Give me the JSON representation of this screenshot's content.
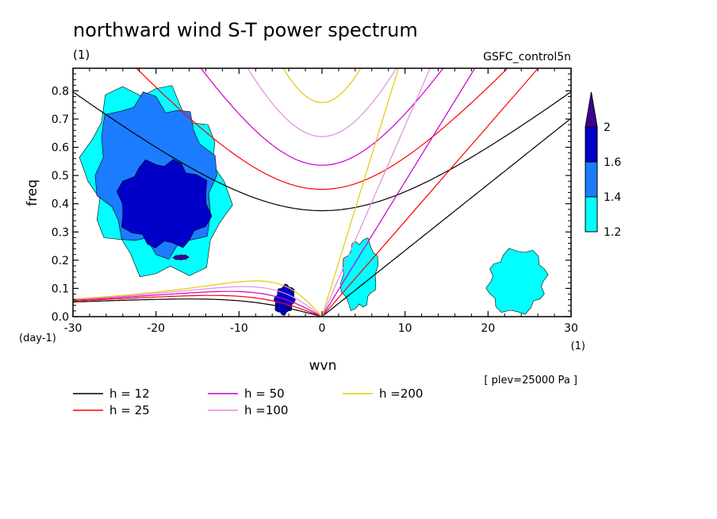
{
  "chart_data": {
    "type": "heatmap",
    "title": "northward wind S-T power spectrum",
    "unit_label": "(1)",
    "dataset_label": "GSFC_control5n",
    "xlabel": "wvn",
    "ylabel": "freq",
    "x_unit": "(1)",
    "y_unit": "(day-1)",
    "level_note": "[ plev=25000 Pa ]",
    "xlim": [
      -30,
      30
    ],
    "ylim": [
      0,
      0.88
    ],
    "x_ticks": [
      -30,
      -20,
      -10,
      0,
      10,
      20,
      30
    ],
    "x_tick_labels": [
      "-30",
      "-20",
      "-10",
      "0",
      "10",
      "20",
      "30"
    ],
    "y_ticks": [
      0,
      0.1,
      0.2,
      0.3,
      0.4,
      0.5,
      0.6,
      0.7,
      0.8
    ],
    "y_tick_labels": [
      "0.0",
      "0.1",
      "0.2",
      "0.3",
      "0.4",
      "0.5",
      "0.6",
      "0.7",
      "0.8"
    ],
    "colorbar": {
      "levels": [
        1.2,
        1.4,
        1.6,
        2
      ],
      "labels": [
        "1.2",
        "1.4",
        "1.6",
        "2"
      ],
      "colors": [
        "#00ffff",
        "#1c7cff",
        "#0000c8",
        "#400090"
      ]
    },
    "contour_regions": [
      {
        "level": 1.2,
        "x_range": [
          -30,
          -10
        ],
        "y_range": [
          0.08,
          0.88
        ]
      },
      {
        "level": 1.4,
        "x_range": [
          -28,
          -12
        ],
        "y_range": [
          0.15,
          0.85
        ]
      },
      {
        "level": 1.6,
        "x_range": [
          -25,
          -13
        ],
        "y_range": [
          0.2,
          0.6
        ]
      },
      {
        "level": 2,
        "x_range": [
          -18,
          -16
        ],
        "y_range": [
          0.2,
          0.22
        ]
      },
      {
        "level": 1.2,
        "x_range": [
          2,
          7
        ],
        "y_range": [
          0.0,
          0.3
        ]
      },
      {
        "level": 1.6,
        "x_range": [
          -6,
          -3
        ],
        "y_range": [
          0.0,
          0.12
        ]
      },
      {
        "level": 1.2,
        "x_range": [
          19,
          28
        ],
        "y_range": [
          0.0,
          0.25
        ]
      }
    ],
    "dispersion_curves": [
      {
        "name": "h = 12",
        "h": 12,
        "color": "#000000"
      },
      {
        "name": "h = 25",
        "h": 25,
        "color": "#ff0000"
      },
      {
        "name": "h = 50",
        "h": 50,
        "color": "#cc00cc"
      },
      {
        "name": "h =100",
        "h": 100,
        "color": "#e08ee0"
      },
      {
        "name": "h =200",
        "h": 200,
        "color": "#e6c800"
      }
    ]
  }
}
